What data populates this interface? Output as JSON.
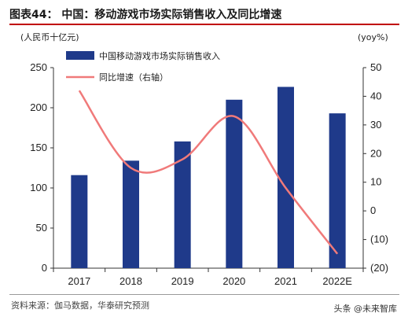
{
  "title": "图表44： 中国：移动游戏市场实际销售收入及同比增速",
  "source": "资料来源：伽马数据，华泰研究预测",
  "watermark": "头条 @未来智库",
  "colors": {
    "bar": "#1f3a8a",
    "line": "#f07a7a",
    "title_rule": "#c00000"
  },
  "chart_data": {
    "type": "bar",
    "categories": [
      "2017",
      "2018",
      "2019",
      "2020",
      "2021",
      "2022E"
    ],
    "series": [
      {
        "name": "中国移动游戏市场实际销售收入",
        "type": "bar",
        "axis": "left",
        "values": [
          116,
          134,
          158,
          210,
          226,
          193
        ]
      },
      {
        "name": "同比增速（右轴）",
        "type": "line",
        "axis": "right",
        "values": [
          42,
          15,
          18,
          33,
          8,
          -15
        ]
      }
    ],
    "y_left": {
      "unit": "(人民币十亿元)",
      "min": 0,
      "max": 250,
      "ticks": [
        "0",
        "50",
        "100",
        "150",
        "200",
        "250"
      ]
    },
    "y_right": {
      "unit": "(yoy%)",
      "min": -20,
      "max": 50,
      "ticks": [
        "(20)",
        "(10)",
        "0",
        "10",
        "20",
        "30",
        "40",
        "50"
      ]
    },
    "legend": "top-left",
    "grid": false
  }
}
